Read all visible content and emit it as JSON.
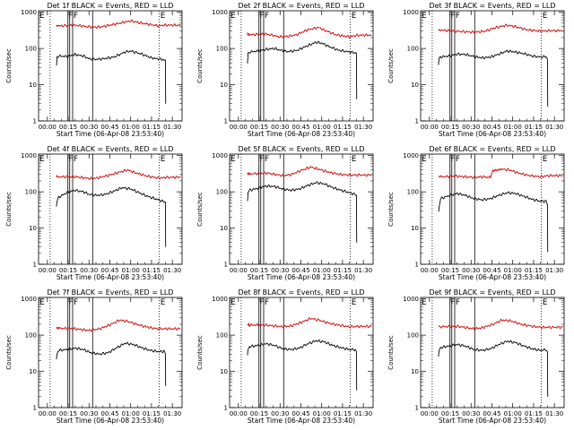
{
  "figure": {
    "xlabel": "Start Time (06-Apr-08 23:53:40)",
    "ylabel": "Counts/sec",
    "x_tick_labels": [
      "00:00",
      "00:15",
      "00:30",
      "00:45",
      "01:00",
      "01:15",
      "01:30"
    ],
    "y_tick_labels": [
      "1",
      "10",
      "100",
      "1000"
    ],
    "colors": {
      "events": "#000000",
      "lld": "#cc0000",
      "background": "#ffffff"
    }
  },
  "chart_data": [
    {
      "type": "line",
      "title": "Det 1f BLACK = Events, RED = LLD",
      "xlabel": "Start Time (06-Apr-08 23:53:40)",
      "ylabel": "Counts/sec",
      "x_unit": "minutes after 00:00",
      "xlim": [
        -6.33,
        97
      ],
      "ylim": [
        1,
        1100
      ],
      "y_scale": "log",
      "markers": {
        "dotted": [
          2,
          80.5
        ],
        "solid": [
          14.8,
          16.1,
          18.2,
          32.6
        ]
      },
      "annotations": [
        {
          "text": "E",
          "x": -5.7
        },
        {
          "text": "F",
          "x": 15.2
        },
        {
          "text": "F",
          "x": 18.8
        },
        {
          "text": "E",
          "x": 81.3
        }
      ],
      "series": [
        {
          "x": [
            6.5,
            8,
            20,
            32,
            38,
            50,
            60,
            68,
            80,
            84,
            96
          ],
          "y": [
            430,
            420,
            440,
            390,
            390,
            480,
            580,
            500,
            420,
            440,
            440
          ]
        },
        {
          "x": [
            6.5,
            7,
            8,
            14,
            20,
            26,
            30,
            35,
            40,
            48,
            56,
            60,
            68,
            75,
            82,
            85,
            85.2
          ],
          "y": [
            32,
            58,
            62,
            60,
            68,
            62,
            52,
            50,
            52,
            58,
            80,
            85,
            70,
            55,
            50,
            48,
            3
          ]
        }
      ]
    },
    {
      "type": "line",
      "title": "Det 2f BLACK = Events, RED = LLD",
      "xlabel": "Start Time (06-Apr-08 23:53:40)",
      "ylabel": "Counts/sec",
      "x_unit": "minutes after 00:00",
      "xlim": [
        -6.33,
        97
      ],
      "ylim": [
        1,
        1100
      ],
      "y_scale": "log",
      "markers": {
        "dotted": [
          2,
          80.5
        ],
        "solid": [
          14.8,
          16.1,
          18.2,
          32.6
        ]
      },
      "annotations": [
        {
          "text": "E",
          "x": -5.7
        },
        {
          "text": "F",
          "x": 15.2
        },
        {
          "text": "F",
          "x": 18.8
        },
        {
          "text": "E",
          "x": 81.3
        }
      ],
      "series": [
        {
          "x": [
            6.5,
            8,
            20,
            30,
            35,
            42,
            50,
            58,
            62,
            70,
            80,
            85,
            96
          ],
          "y": [
            250,
            240,
            250,
            210,
            215,
            240,
            330,
            380,
            320,
            240,
            210,
            230,
            235
          ]
        },
        {
          "x": [
            6.5,
            7,
            8,
            14,
            20,
            26,
            30,
            35,
            42,
            50,
            56,
            60,
            66,
            72,
            80,
            85,
            85.2
          ],
          "y": [
            38,
            72,
            80,
            85,
            95,
            100,
            90,
            82,
            88,
            120,
            150,
            140,
            110,
            90,
            80,
            75,
            4
          ]
        }
      ]
    },
    {
      "type": "line",
      "title": "Det 3f BLACK = Events, RED = LLD",
      "xlabel": "Start Time (06-Apr-08 23:53:40)",
      "ylabel": "Counts/sec",
      "x_unit": "minutes after 00:00",
      "xlim": [
        -6.33,
        97
      ],
      "ylim": [
        1,
        1100
      ],
      "y_scale": "log",
      "markers": {
        "dotted": [
          2,
          80.5
        ],
        "solid": [
          14.8,
          16.1,
          18.2,
          32.6
        ]
      },
      "annotations": [
        {
          "text": "E",
          "x": -5.7
        },
        {
          "text": "F",
          "x": 15.2
        },
        {
          "text": "F",
          "x": 18.8
        },
        {
          "text": "E",
          "x": 81.3
        }
      ],
      "series": [
        {
          "x": [
            6.5,
            8,
            20,
            32,
            40,
            48,
            56,
            62,
            70,
            80,
            86,
            96
          ],
          "y": [
            330,
            320,
            300,
            280,
            300,
            380,
            440,
            400,
            330,
            300,
            310,
            310
          ]
        },
        {
          "x": [
            6.5,
            7,
            8,
            14,
            20,
            26,
            32,
            38,
            44,
            50,
            56,
            62,
            68,
            74,
            80,
            84,
            85,
            85.2
          ],
          "y": [
            36,
            52,
            58,
            62,
            70,
            68,
            60,
            55,
            58,
            70,
            85,
            80,
            72,
            62,
            58,
            60,
            50,
            2.5
          ]
        }
      ]
    },
    {
      "type": "line",
      "title": "Det 4f BLACK = Events, RED = LLD",
      "xlabel": "Start Time (06-Apr-08 23:53:40)",
      "ylabel": "Counts/sec",
      "x_unit": "minutes after 00:00",
      "xlim": [
        -6.33,
        97
      ],
      "ylim": [
        1,
        1100
      ],
      "y_scale": "log",
      "markers": {
        "dotted": [
          2,
          80.5
        ],
        "solid": [
          14.8,
          16.1,
          18.2,
          32.6
        ]
      },
      "annotations": [
        {
          "text": "E",
          "x": -5.7
        },
        {
          "text": "F",
          "x": 15.2
        },
        {
          "text": "F",
          "x": 18.8
        },
        {
          "text": "E",
          "x": 81.3
        }
      ],
      "series": [
        {
          "x": [
            6.5,
            8,
            20,
            32,
            38,
            45,
            52,
            58,
            64,
            72,
            80,
            86,
            96
          ],
          "y": [
            270,
            260,
            260,
            230,
            250,
            290,
            350,
            400,
            330,
            270,
            240,
            250,
            255
          ]
        },
        {
          "x": [
            6.5,
            7,
            8,
            14,
            20,
            26,
            30,
            36,
            42,
            48,
            54,
            60,
            66,
            72,
            80,
            85,
            85.2
          ],
          "y": [
            40,
            55,
            70,
            95,
            110,
            100,
            85,
            80,
            85,
            105,
            130,
            120,
            95,
            75,
            60,
            52,
            3
          ]
        }
      ]
    },
    {
      "type": "line",
      "title": "Det 5f BLACK = Events, RED = LLD",
      "xlabel": "Start Time (06-Apr-08 23:53:40)",
      "ylabel": "Counts/sec",
      "x_unit": "minutes after 00:00",
      "xlim": [
        -6.33,
        97
      ],
      "ylim": [
        1,
        1100
      ],
      "y_scale": "log",
      "markers": {
        "dotted": [
          2,
          80.5
        ],
        "solid": [
          14.8,
          16.1,
          18.2,
          32.6
        ]
      },
      "annotations": [
        {
          "text": "E",
          "x": -5.7
        },
        {
          "text": "F",
          "x": 15.2
        },
        {
          "text": "F",
          "x": 18.8
        },
        {
          "text": "E",
          "x": 81.3
        }
      ],
      "series": [
        {
          "x": [
            6.5,
            8,
            20,
            32,
            38,
            46,
            52,
            58,
            66,
            74,
            80,
            86,
            96
          ],
          "y": [
            320,
            310,
            330,
            280,
            300,
            400,
            480,
            420,
            340,
            300,
            290,
            290,
            290
          ]
        },
        {
          "x": [
            6.5,
            7,
            8,
            14,
            20,
            26,
            32,
            38,
            44,
            50,
            56,
            62,
            68,
            74,
            80,
            84,
            85,
            85.2
          ],
          "y": [
            55,
            100,
            110,
            125,
            145,
            140,
            120,
            110,
            120,
            150,
            180,
            165,
            130,
            110,
            95,
            85,
            80,
            4
          ]
        }
      ]
    },
    {
      "type": "line",
      "title": "Det 6f BLACK = Events, RED = LLD",
      "xlabel": "Start Time (06-Apr-08 23:53:40)",
      "ylabel": "Counts/sec",
      "x_unit": "minutes after 00:00",
      "xlim": [
        -6.33,
        97
      ],
      "ylim": [
        1,
        1100
      ],
      "y_scale": "log",
      "markers": {
        "dotted": [
          2,
          80.5
        ],
        "solid": [
          14.8,
          16.1,
          18.2,
          32.6
        ]
      },
      "annotations": [
        {
          "text": "E",
          "x": -5.7
        },
        {
          "text": "F",
          "x": 15.2
        },
        {
          "text": "F",
          "x": 18.8
        },
        {
          "text": "E",
          "x": 81.3
        }
      ],
      "series": [
        {
          "x": [
            6.5,
            8,
            20,
            32,
            38,
            44,
            45.5,
            52,
            58,
            64,
            72,
            80,
            86,
            96
          ],
          "y": [
            270,
            260,
            270,
            250,
            260,
            250,
            380,
            420,
            400,
            330,
            280,
            260,
            280,
            280
          ]
        },
        {
          "x": [
            6.5,
            7,
            8,
            14,
            20,
            26,
            32,
            38,
            44,
            50,
            56,
            62,
            68,
            74,
            80,
            84,
            85,
            85.2
          ],
          "y": [
            28,
            38,
            65,
            78,
            90,
            80,
            65,
            60,
            65,
            80,
            95,
            90,
            75,
            62,
            55,
            55,
            45,
            2.2
          ]
        }
      ]
    },
    {
      "type": "line",
      "title": "Det 7f BLACK = Events, RED = LLD",
      "xlabel": "Start Time (06-Apr-08 23:53:40)",
      "ylabel": "Counts/sec",
      "x_unit": "minutes after 00:00",
      "xlim": [
        -6.33,
        97
      ],
      "ylim": [
        1,
        1100
      ],
      "y_scale": "log",
      "markers": {
        "dotted": [
          2,
          80.5
        ],
        "solid": [
          14.8,
          16.1,
          18.2,
          32.6
        ]
      },
      "annotations": [
        {
          "text": "E",
          "x": -5.7
        },
        {
          "text": "F",
          "x": 15.2
        },
        {
          "text": "F",
          "x": 18.8
        },
        {
          "text": "E",
          "x": 81.3
        }
      ],
      "series": [
        {
          "x": [
            6.5,
            8,
            20,
            30,
            38,
            46,
            52,
            58,
            66,
            74,
            80,
            86,
            96
          ],
          "y": [
            160,
            155,
            150,
            135,
            150,
            200,
            260,
            240,
            190,
            160,
            150,
            150,
            150
          ]
        },
        {
          "x": [
            6.5,
            7,
            8,
            14,
            20,
            26,
            32,
            38,
            44,
            50,
            56,
            62,
            68,
            74,
            80,
            84,
            85,
            85.2
          ],
          "y": [
            22,
            30,
            38,
            40,
            44,
            40,
            32,
            30,
            33,
            45,
            60,
            55,
            45,
            38,
            35,
            36,
            30,
            4
          ]
        }
      ]
    },
    {
      "type": "line",
      "title": "Det 8f BLACK = Events, RED = LLD",
      "xlabel": "Start Time (06-Apr-08 23:53:40)",
      "ylabel": "Counts/sec",
      "x_unit": "minutes after 00:00",
      "xlim": [
        -6.33,
        97
      ],
      "ylim": [
        1,
        1100
      ],
      "y_scale": "log",
      "markers": {
        "dotted": [
          2,
          80.5
        ],
        "solid": [
          14.8,
          16.1,
          18.2,
          32.6
        ]
      },
      "annotations": [
        {
          "text": "E",
          "x": -5.7
        },
        {
          "text": "F",
          "x": 15.2
        },
        {
          "text": "F",
          "x": 18.8
        },
        {
          "text": "E",
          "x": 81.3
        }
      ],
      "series": [
        {
          "x": [
            6.5,
            8,
            20,
            32,
            38,
            46,
            52,
            58,
            66,
            74,
            80,
            86,
            96
          ],
          "y": [
            200,
            190,
            190,
            170,
            180,
            230,
            290,
            260,
            210,
            185,
            170,
            175,
            175
          ]
        },
        {
          "x": [
            6.5,
            7,
            8,
            14,
            20,
            26,
            32,
            38,
            44,
            50,
            56,
            62,
            68,
            74,
            80,
            84,
            85,
            85.2
          ],
          "y": [
            28,
            40,
            48,
            52,
            58,
            52,
            42,
            40,
            44,
            58,
            70,
            65,
            52,
            45,
            40,
            40,
            35,
            3
          ]
        }
      ]
    },
    {
      "type": "line",
      "title": "Det 9f BLACK = Events, RED = LLD",
      "xlabel": "Start Time (06-Apr-08 23:53:40)",
      "ylabel": "Counts/sec",
      "x_unit": "minutes after 00:00",
      "xlim": [
        -6.33,
        97
      ],
      "ylim": [
        1,
        1100
      ],
      "y_scale": "log",
      "markers": {
        "dotted": [
          2,
          80.5
        ],
        "solid": [
          14.8,
          16.1,
          18.2,
          32.6
        ]
      },
      "annotations": [
        {
          "text": "E",
          "x": -5.7
        },
        {
          "text": "F",
          "x": 15.2
        },
        {
          "text": "F",
          "x": 18.8
        },
        {
          "text": "E",
          "x": 81.3
        }
      ],
      "series": [
        {
          "x": [
            6.5,
            8,
            20,
            32,
            38,
            46,
            52,
            58,
            66,
            74,
            80,
            86,
            96
          ],
          "y": [
            180,
            170,
            175,
            150,
            160,
            200,
            260,
            250,
            200,
            175,
            165,
            165,
            165
          ]
        },
        {
          "x": [
            6.5,
            7,
            8,
            14,
            20,
            26,
            32,
            38,
            44,
            50,
            56,
            62,
            68,
            74,
            80,
            84,
            85,
            85.2
          ],
          "y": [
            25,
            38,
            45,
            50,
            55,
            50,
            40,
            38,
            42,
            55,
            68,
            62,
            50,
            42,
            38,
            40,
            35,
            2
          ]
        }
      ]
    }
  ]
}
